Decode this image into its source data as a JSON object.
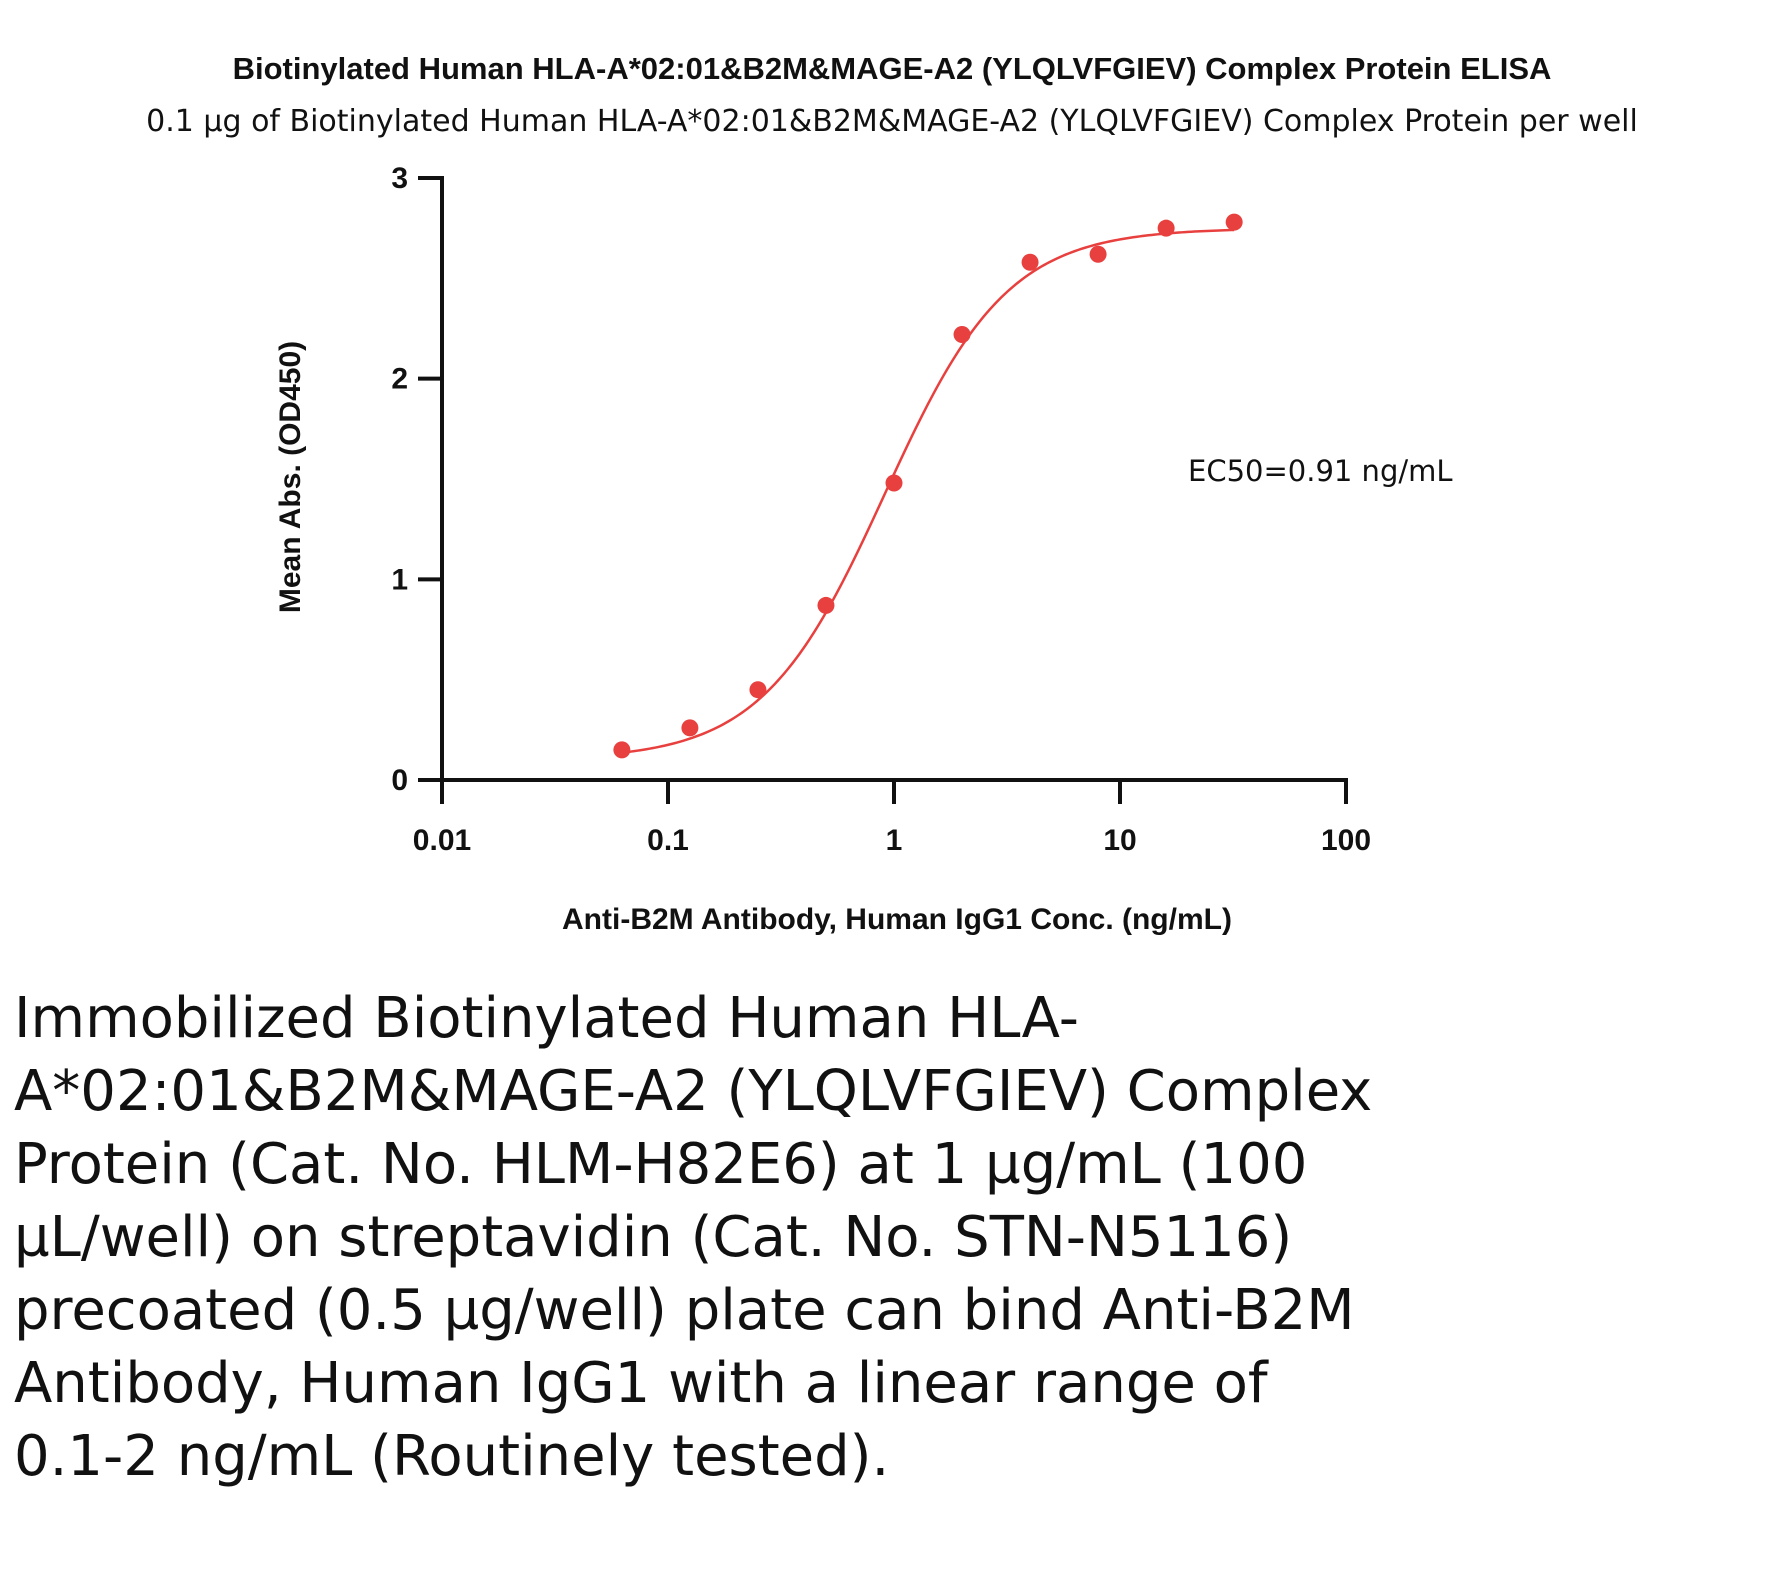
{
  "chart_data": {
    "type": "scatter",
    "title": "Biotinylated Human HLA-A*02:01&B2M&MAGE-A2 (YLQLVFGIEV) Complex Protein ELISA",
    "subtitle": "0.1 µg of Biotinylated Human HLA-A*02:01&B2M&MAGE-A2 (YLQLVFGIEV) Complex Protein per well",
    "xlabel": "Anti-B2M Antibody, Human IgG1 Conc. (ng/mL)",
    "ylabel": "Mean Abs. (OD450)",
    "x_scale": "log",
    "xlim": [
      0.01,
      100
    ],
    "ylim": [
      0,
      3
    ],
    "x_ticks": [
      "0.01",
      "0.1",
      "1",
      "10",
      "100"
    ],
    "y_ticks": [
      "0",
      "1",
      "2",
      "3"
    ],
    "grid": false,
    "color": "#e8403e",
    "annotation": "EC50=0.91 ng/mL",
    "points": {
      "x": [
        0.0625,
        0.125,
        0.25,
        0.5,
        1,
        2,
        4,
        8,
        16,
        32
      ],
      "y": [
        0.15,
        0.26,
        0.45,
        0.87,
        1.48,
        2.22,
        2.58,
        2.62,
        2.75,
        2.78
      ]
    },
    "fit_curve": {
      "model": "4PL",
      "bottom": 0.1,
      "top": 2.75,
      "ec50": 0.91,
      "hill": 1.6
    }
  },
  "caption": "Immobilized Biotinylated Human HLA-A*02:01&B2M&MAGE-A2 (YLQLVFGIEV) Complex Protein (Cat. No. HLM-H82E6) at 1 µg/mL (100 µL/well) on streptavidin (Cat. No. STN-N5116) precoated (0.5 µg/well) plate can bind Anti-B2M Antibody, Human IgG1 with a linear range of 0.1-2 ng/mL (Routinely tested)."
}
